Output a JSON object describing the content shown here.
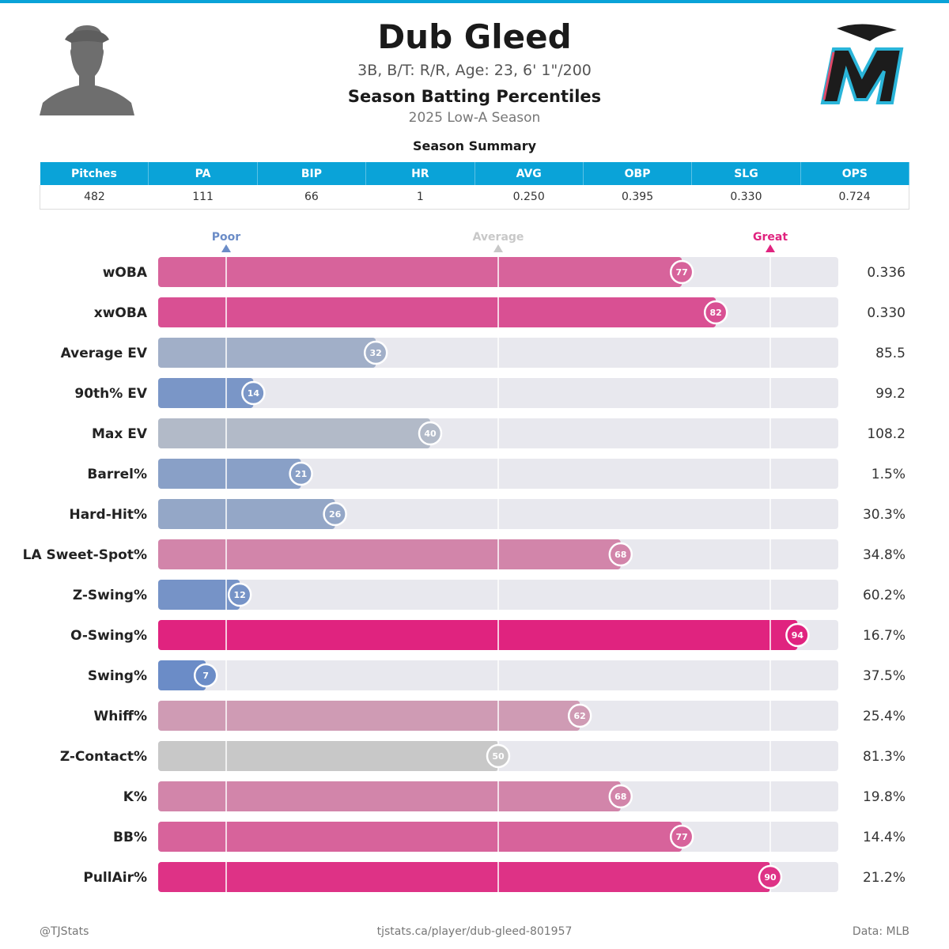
{
  "colors": {
    "accent": "#0aa3d8",
    "poor": "#6b8cc7",
    "great": "#e0237f",
    "average": "#c8c8c8",
    "track": "#e8e8ee"
  },
  "player": {
    "name": "Dub Gleed",
    "bio": "3B, B/T: R/R, Age: 23, 6' 1\"/200",
    "heading": "Season Batting Percentiles",
    "season": "2025 Low-A Season"
  },
  "summary": {
    "title": "Season Summary",
    "headers": [
      "Pitches",
      "PA",
      "BIP",
      "HR",
      "AVG",
      "OBP",
      "SLG",
      "OPS"
    ],
    "values": [
      "482",
      "111",
      "66",
      "1",
      "0.250",
      "0.395",
      "0.330",
      "0.724"
    ]
  },
  "chart_data": {
    "type": "bar",
    "orientation": "horizontal",
    "title": "Season Batting Percentiles",
    "xlim": [
      0,
      100
    ],
    "reference_lines": [
      {
        "label": "Poor",
        "value": 10
      },
      {
        "label": "Average",
        "value": 50
      },
      {
        "label": "Great",
        "value": 90
      }
    ],
    "categories": [
      "wOBA",
      "xwOBA",
      "Average EV",
      "90th% EV",
      "Max EV",
      "Barrel%",
      "Hard-Hit%",
      "LA Sweet-Spot%",
      "Z-Swing%",
      "O-Swing%",
      "Swing%",
      "Whiff%",
      "Z-Contact%",
      "K%",
      "BB%",
      "PullAir%"
    ],
    "values": [
      77,
      82,
      32,
      14,
      40,
      21,
      26,
      68,
      12,
      94,
      7,
      62,
      50,
      68,
      77,
      90
    ],
    "stat_values": [
      "0.336",
      "0.330",
      "85.5",
      "99.2",
      "108.2",
      "1.5%",
      "30.3%",
      "34.8%",
      "60.2%",
      "16.7%",
      "37.5%",
      "25.4%",
      "81.3%",
      "19.8%",
      "14.4%",
      "21.2%"
    ]
  },
  "footer": {
    "left": "@TJStats",
    "center": "tjstats.ca/player/dub-gleed-801957",
    "right": "Data: MLB"
  }
}
